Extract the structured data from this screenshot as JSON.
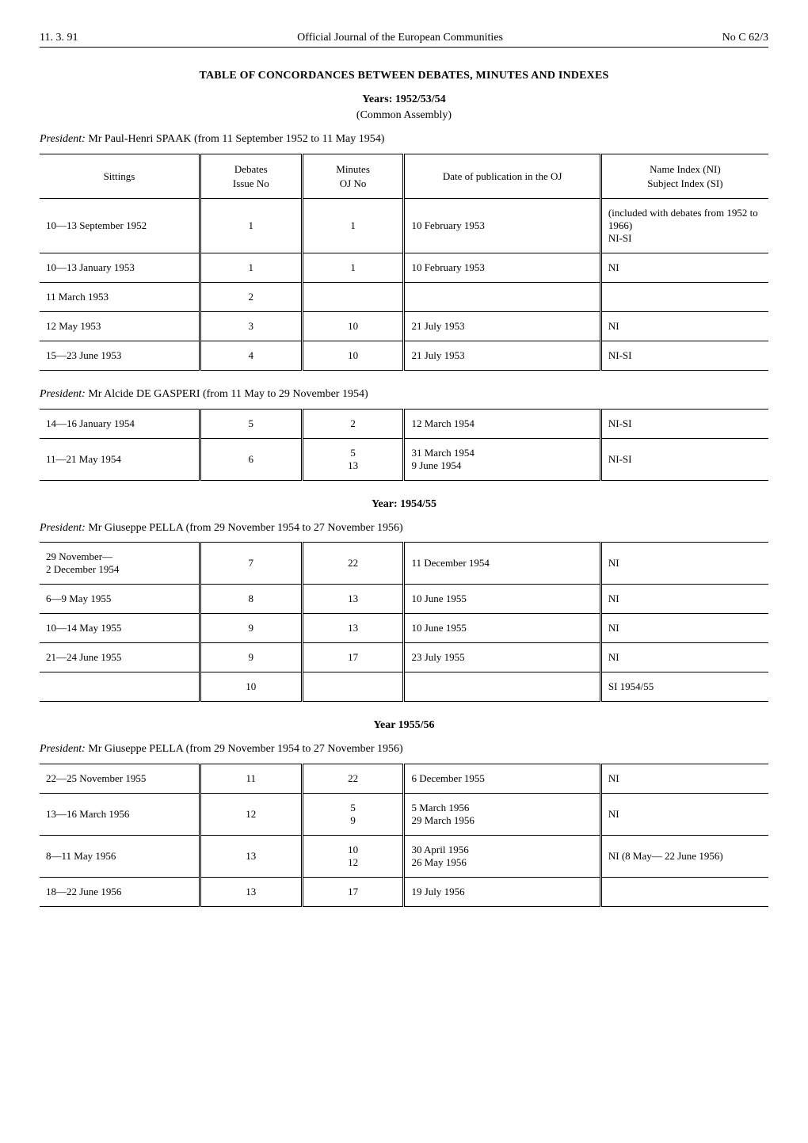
{
  "header": {
    "left": "11. 3. 91",
    "center": "Official Journal of the European Communities",
    "right": "No C 62/3"
  },
  "title": "TABLE OF CONCORDANCES BETWEEN DEBATES, MINUTES AND INDEXES",
  "sections": [
    {
      "years_label": "Years: 1952/53/54",
      "subtitle": "(Common Assembly)",
      "president_prefix": "President:",
      "president": "Mr Paul-Henri SPAAK (from 11 September 1952 to 11 May 1954)",
      "columns": {
        "sittings": "Sittings",
        "debates": "Debates\nIssue No",
        "minutes": "Minutes\nOJ No",
        "date": "Date of publication in the OJ",
        "index": "Name Index (NI)\nSubject Index (SI)"
      },
      "rows": [
        {
          "sittings": "10—13 September 1952",
          "debates": "1",
          "minutes": "1",
          "date": "10 February 1953",
          "index": "(included with debates from 1952 to 1966)\nNI-SI"
        },
        {
          "sittings": "10—13 January 1953",
          "debates": "1",
          "minutes": "1",
          "date": "10 February 1953",
          "index": "NI"
        },
        {
          "sittings": "11 March 1953",
          "debates": "2",
          "minutes": "",
          "date": "",
          "index": ""
        },
        {
          "sittings": "12 May 1953",
          "debates": "3",
          "minutes": "10",
          "date": "21 July 1953",
          "index": "NI"
        },
        {
          "sittings": "15—23 June 1953",
          "debates": "4",
          "minutes": "10",
          "date": "21 July 1953",
          "index": "NI-SI"
        }
      ]
    },
    {
      "president_prefix": "President:",
      "president": "Mr Alcide DE GASPERI (from 11 May to 29 November 1954)",
      "rows": [
        {
          "sittings": "14—16 January 1954",
          "debates": "5",
          "minutes": "2",
          "date": "12 March 1954",
          "index": "NI-SI"
        },
        {
          "sittings": "11—21 May 1954",
          "debates": "6",
          "minutes": "5\n13",
          "date": "31 March 1954\n9 June 1954",
          "index": "NI-SI"
        }
      ]
    },
    {
      "years_label": "Year: 1954/55",
      "president_prefix": "President:",
      "president": "Mr Giuseppe PELLA (from 29 November 1954 to 27 November 1956)",
      "rows": [
        {
          "sittings": "29 November—\n2 December 1954",
          "debates": "7",
          "minutes": "22",
          "date": "11 December 1954",
          "index": "NI"
        },
        {
          "sittings": "6—9 May 1955",
          "debates": "8",
          "minutes": "13",
          "date": "10 June 1955",
          "index": "NI"
        },
        {
          "sittings": "10—14 May 1955",
          "debates": "9",
          "minutes": "13",
          "date": "10 June 1955",
          "index": "NI"
        },
        {
          "sittings": "21—24 June 1955",
          "debates": "9",
          "minutes": "17",
          "date": "23 July 1955",
          "index": "NI"
        },
        {
          "sittings": "",
          "debates": "10",
          "minutes": "",
          "date": "",
          "index": "SI 1954/55"
        }
      ]
    },
    {
      "years_label": "Year 1955/56",
      "president_prefix": "President:",
      "president": "Mr Giuseppe PELLA (from 29 November 1954 to 27 November 1956)",
      "rows": [
        {
          "sittings": "22—25 November 1955",
          "debates": "11",
          "minutes": "22",
          "date": "6 December 1955",
          "index": "NI"
        },
        {
          "sittings": "13—16 March 1956",
          "debates": "12",
          "minutes": "5\n9",
          "date": "5 March 1956\n29 March 1956",
          "index": "NI"
        },
        {
          "sittings": "8—11 May 1956",
          "debates": "13",
          "minutes": "10\n12",
          "date": "30 April 1956\n26 May 1956",
          "index": "NI (8 May— 22 June 1956)"
        },
        {
          "sittings": "18—22 June 1956",
          "debates": "13",
          "minutes": "17",
          "date": "19 July 1956",
          "index": ""
        }
      ]
    }
  ]
}
